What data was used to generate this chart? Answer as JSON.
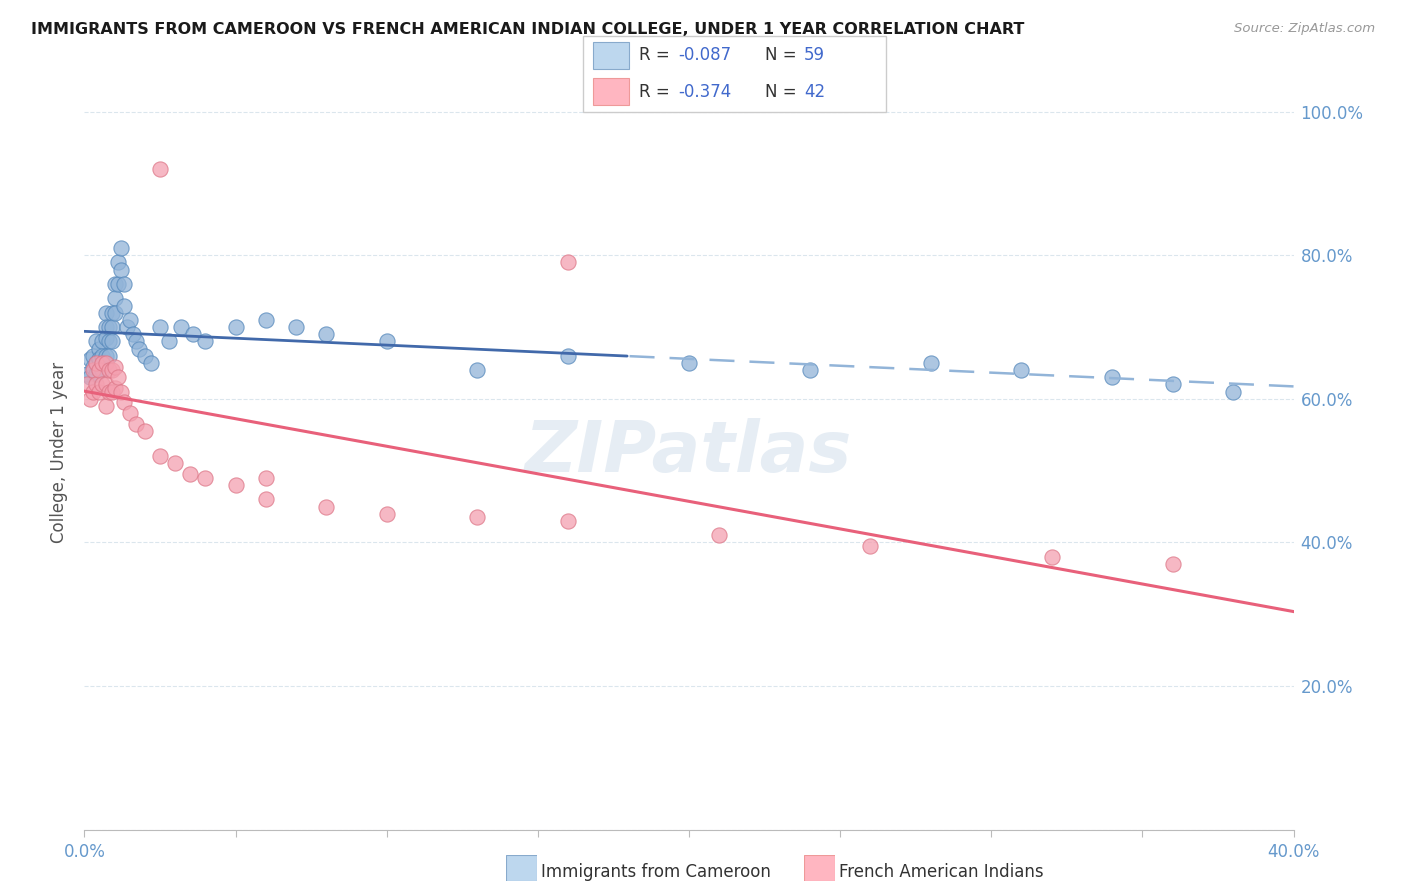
{
  "title": "IMMIGRANTS FROM CAMEROON VS FRENCH AMERICAN INDIAN COLLEGE, UNDER 1 YEAR CORRELATION CHART",
  "source_text": "Source: ZipAtlas.com",
  "ylabel": "College, Under 1 year",
  "xlim": [
    0.0,
    0.4
  ],
  "ylim": [
    0.0,
    1.05
  ],
  "xtick_positions": [
    0.0,
    0.05,
    0.1,
    0.15,
    0.2,
    0.25,
    0.3,
    0.35,
    0.4
  ],
  "ytick_positions": [
    0.0,
    0.2,
    0.4,
    0.6,
    0.8,
    1.0
  ],
  "yticklabels_right": [
    "",
    "20.0%",
    "40.0%",
    "60.0%",
    "80.0%",
    "100.0%"
  ],
  "blue_color": "#92B4D8",
  "pink_color": "#F4A0B0",
  "trend_blue_solid": "#4169AA",
  "trend_blue_dashed": "#92B4D8",
  "trend_pink": "#E8607A",
  "watermark_color": "#C8D8E8",
  "grid_color": "#D8E4EC",
  "legend_blue_r": "-0.087",
  "legend_blue_n": "59",
  "legend_pink_r": "-0.374",
  "legend_pink_n": "42",
  "legend_val_color": "#4169CC",
  "tick_color": "#6699CC",
  "blue_points_x": [
    0.001,
    0.002,
    0.002,
    0.003,
    0.003,
    0.004,
    0.004,
    0.004,
    0.005,
    0.005,
    0.005,
    0.006,
    0.006,
    0.006,
    0.007,
    0.007,
    0.007,
    0.007,
    0.008,
    0.008,
    0.008,
    0.009,
    0.009,
    0.009,
    0.01,
    0.01,
    0.01,
    0.011,
    0.011,
    0.012,
    0.012,
    0.013,
    0.013,
    0.014,
    0.015,
    0.016,
    0.017,
    0.018,
    0.02,
    0.022,
    0.025,
    0.028,
    0.032,
    0.036,
    0.04,
    0.05,
    0.06,
    0.07,
    0.08,
    0.1,
    0.13,
    0.16,
    0.2,
    0.24,
    0.28,
    0.31,
    0.34,
    0.36,
    0.38
  ],
  "blue_points_y": [
    0.635,
    0.655,
    0.63,
    0.66,
    0.645,
    0.68,
    0.65,
    0.635,
    0.67,
    0.655,
    0.64,
    0.68,
    0.66,
    0.64,
    0.72,
    0.7,
    0.685,
    0.66,
    0.7,
    0.68,
    0.66,
    0.72,
    0.7,
    0.68,
    0.76,
    0.74,
    0.72,
    0.79,
    0.76,
    0.81,
    0.78,
    0.76,
    0.73,
    0.7,
    0.71,
    0.69,
    0.68,
    0.67,
    0.66,
    0.65,
    0.7,
    0.68,
    0.7,
    0.69,
    0.68,
    0.7,
    0.71,
    0.7,
    0.69,
    0.68,
    0.64,
    0.66,
    0.65,
    0.64,
    0.65,
    0.64,
    0.63,
    0.62,
    0.61
  ],
  "pink_points_x": [
    0.001,
    0.002,
    0.003,
    0.003,
    0.004,
    0.004,
    0.005,
    0.005,
    0.006,
    0.006,
    0.007,
    0.007,
    0.007,
    0.008,
    0.008,
    0.009,
    0.009,
    0.01,
    0.01,
    0.011,
    0.012,
    0.013,
    0.015,
    0.017,
    0.02,
    0.025,
    0.03,
    0.035,
    0.04,
    0.05,
    0.06,
    0.08,
    0.1,
    0.13,
    0.16,
    0.21,
    0.26,
    0.32,
    0.36,
    0.025,
    0.16,
    0.06
  ],
  "pink_points_y": [
    0.62,
    0.6,
    0.64,
    0.61,
    0.65,
    0.62,
    0.64,
    0.61,
    0.65,
    0.62,
    0.65,
    0.62,
    0.59,
    0.64,
    0.61,
    0.64,
    0.61,
    0.645,
    0.615,
    0.63,
    0.61,
    0.595,
    0.58,
    0.565,
    0.555,
    0.52,
    0.51,
    0.495,
    0.49,
    0.48,
    0.46,
    0.45,
    0.44,
    0.435,
    0.43,
    0.41,
    0.395,
    0.38,
    0.37,
    0.92,
    0.79,
    0.49
  ]
}
